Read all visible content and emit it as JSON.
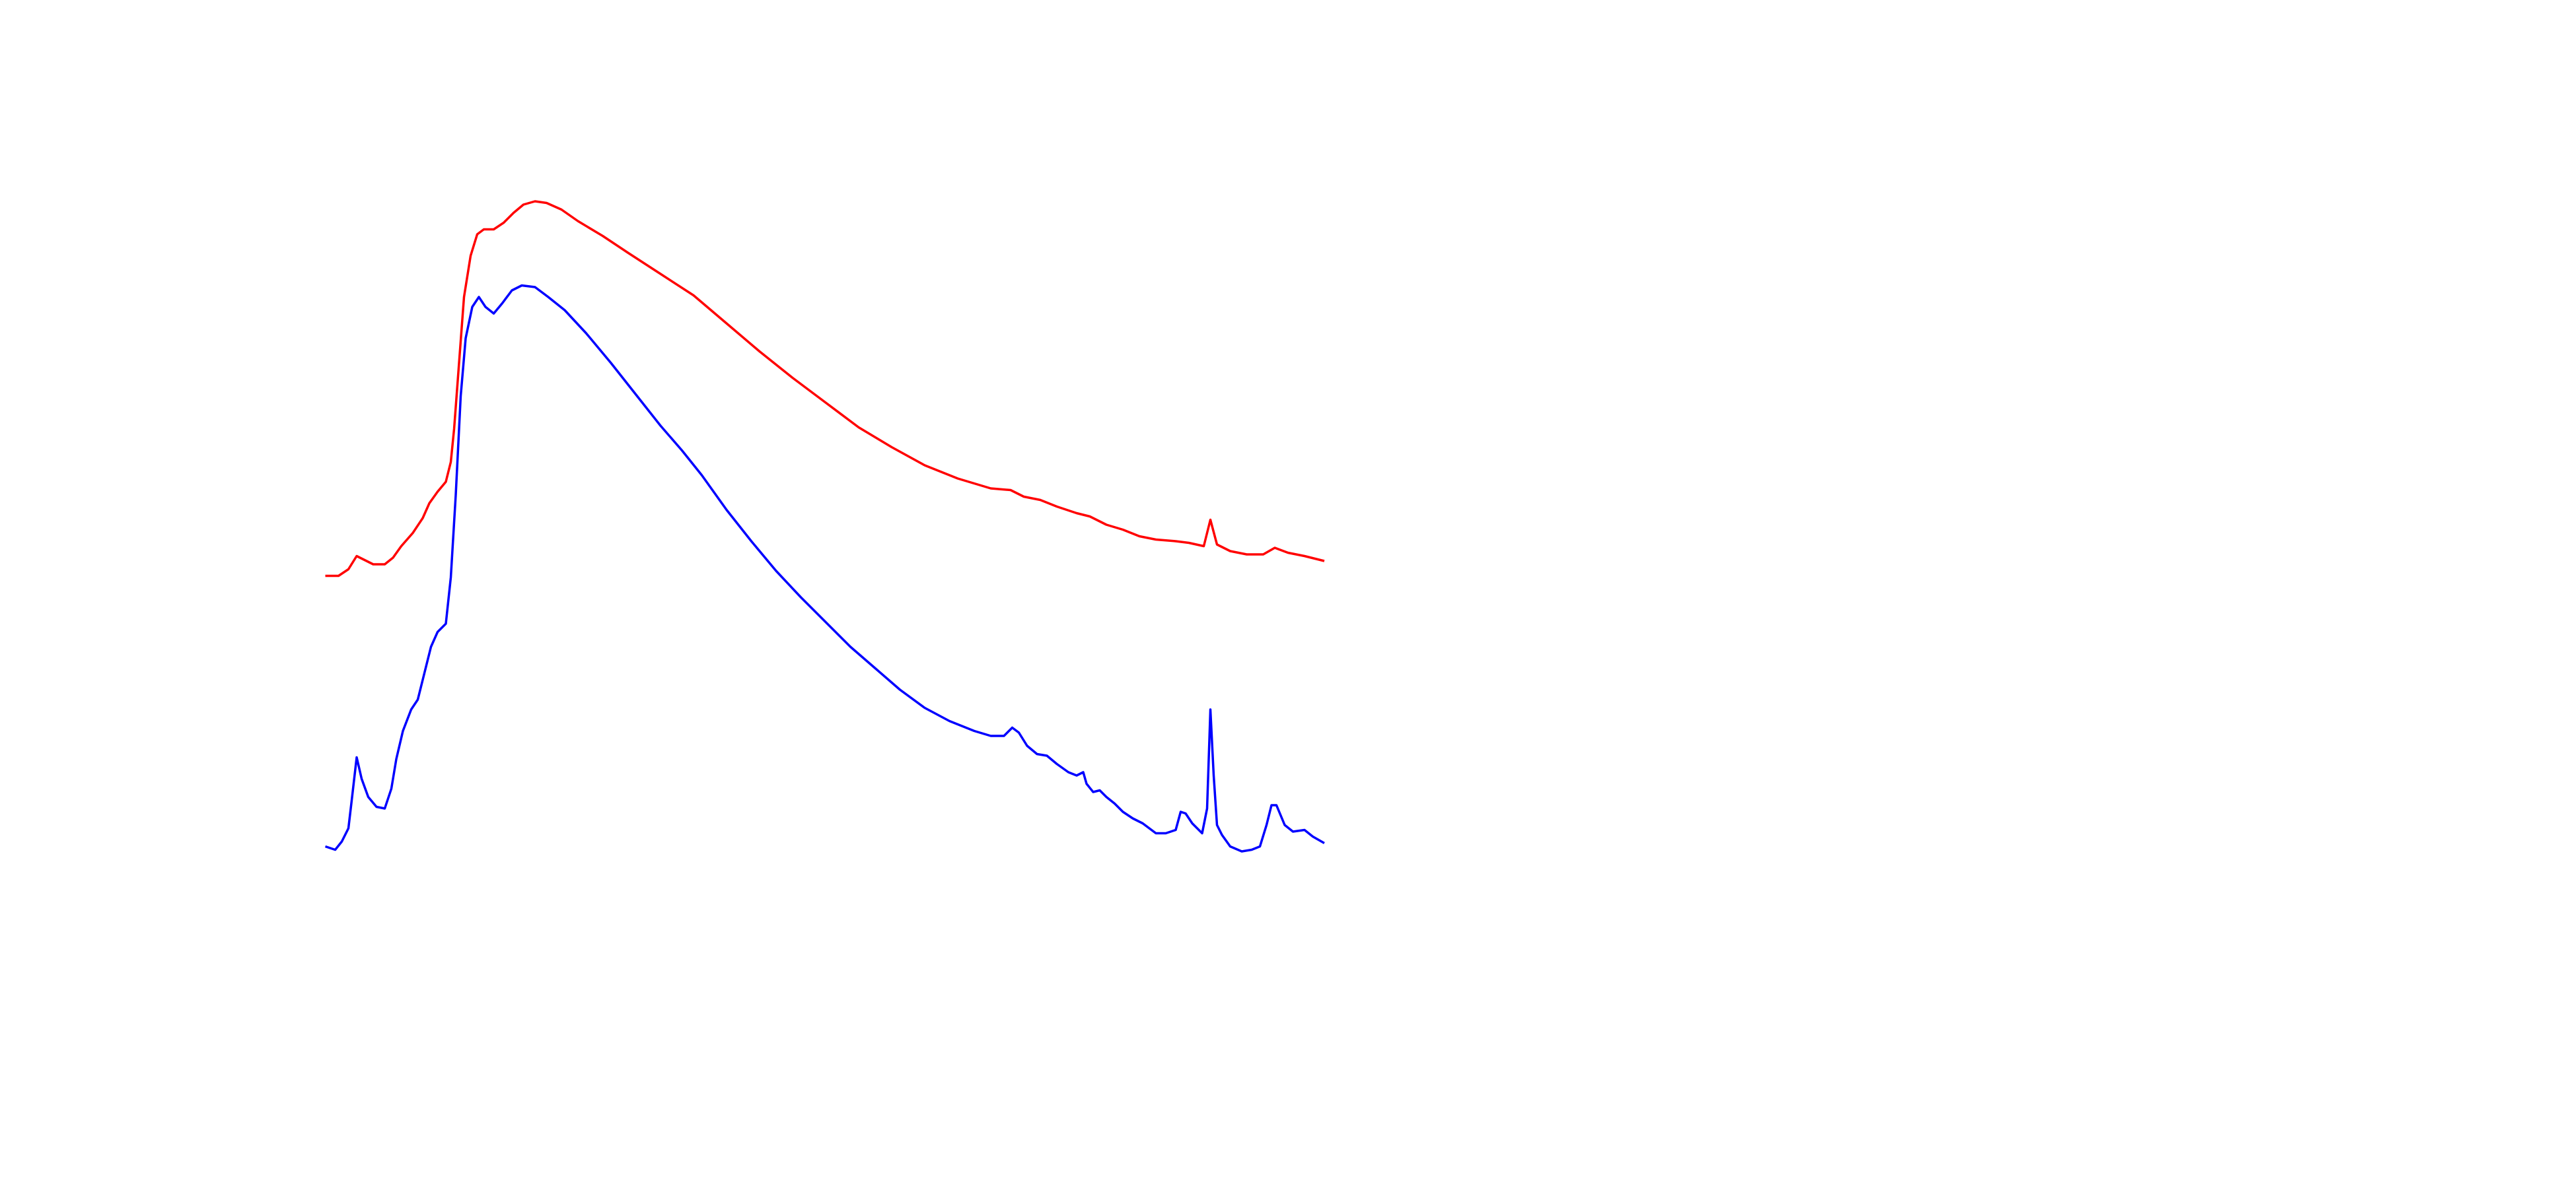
{
  "chart_data": {
    "type": "line",
    "xlim": [
      0,
      605
    ],
    "ylim": [
      0,
      440
    ],
    "series": [
      {
        "color": "#ff0000",
        "x": [
          0,
          8,
          14,
          19,
          23,
          29,
          36,
          41,
          46,
          53,
          59,
          63,
          68,
          73,
          76,
          78,
          81,
          84,
          88,
          92,
          96,
          102,
          108,
          114,
          120,
          127,
          134,
          143,
          153,
          168,
          183,
          203,
          223,
          243,
          263,
          283,
          303,
          323,
          343,
          363,
          383,
          403,
          415,
          423,
          433,
          443,
          455,
          463,
          473,
          483,
          493,
          503,
          515,
          523,
          532,
          536,
          540,
          548,
          558,
          568,
          575,
          583,
          593,
          605
        ],
        "values": [
          191,
          191,
          195,
          203,
          201,
          198,
          198,
          202,
          209,
          217,
          226,
          235,
          242,
          248,
          260,
          280,
          320,
          360,
          385,
          398,
          401,
          401,
          405,
          411,
          416,
          418,
          417,
          413,
          406,
          397,
          387,
          374,
          361,
          344,
          327,
          311,
          296,
          281,
          269,
          258,
          250,
          244,
          243,
          239,
          237,
          233,
          229,
          227,
          222,
          219,
          215,
          213,
          212,
          211,
          209,
          225,
          210,
          206,
          204,
          204,
          208,
          205,
          203,
          200
        ]
      },
      {
        "color": "#0000ff",
        "x": [
          0,
          6,
          10,
          14,
          16,
          19,
          22,
          26,
          31,
          36,
          40,
          43,
          47,
          52,
          56,
          60,
          64,
          68,
          73,
          76,
          79,
          82,
          85,
          89,
          93,
          97,
          102,
          107,
          113,
          119,
          127,
          135,
          145,
          158,
          173,
          188,
          203,
          216,
          228,
          243,
          258,
          273,
          288,
          303,
          318,
          333,
          348,
          363,
          378,
          393,
          403,
          411,
          416,
          420,
          425,
          431,
          437,
          443,
          450,
          455,
          459,
          461,
          465,
          469,
          473,
          478,
          483,
          489,
          495,
          503,
          509,
          515,
          518,
          521,
          525,
          531,
          534,
          536,
          538,
          540,
          543,
          548,
          555,
          561,
          566,
          570,
          573,
          576,
          581,
          586,
          593,
          598,
          605
        ],
        "values": [
          27,
          25,
          30,
          38,
          55,
          81,
          68,
          57,
          51,
          50,
          62,
          80,
          97,
          110,
          116,
          132,
          148,
          157,
          162,
          190,
          240,
          300,
          335,
          354,
          360,
          354,
          350,
          356,
          364,
          367,
          366,
          360,
          352,
          338,
          320,
          301,
          282,
          267,
          252,
          231,
          212,
          194,
          178,
          163,
          148,
          135,
          122,
          111,
          103,
          97,
          94,
          94,
          99,
          96,
          88,
          83,
          82,
          77,
          72,
          70,
          72,
          65,
          60,
          61,
          57,
          53,
          48,
          44,
          41,
          35,
          35,
          37,
          48,
          47,
          41,
          35,
          50,
          110,
          70,
          40,
          34,
          27,
          24,
          25,
          27,
          40,
          52,
          52,
          40,
          36,
          37,
          33,
          29
        ]
      }
    ]
  }
}
